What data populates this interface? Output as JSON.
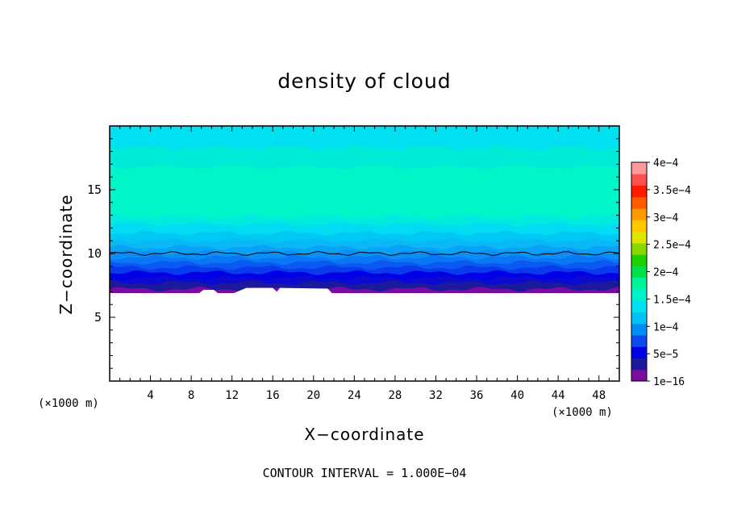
{
  "chart_data": {
    "type": "heatmap",
    "title": "density of cloud",
    "xlabel": "X−coordinate",
    "ylabel": "Z−coordinate",
    "x_unit_label": "(×1000 m)",
    "z_unit_label": "(×1000 m)",
    "xlim": [
      0,
      50
    ],
    "ylim": [
      0,
      20
    ],
    "x_ticks": [
      "4",
      "8",
      "12",
      "16",
      "20",
      "24",
      "28",
      "32",
      "36",
      "40",
      "44",
      "48"
    ],
    "y_ticks": [
      "5",
      "10",
      "15"
    ],
    "colorbar": {
      "labels": [
        "1e−16",
        "5e−5",
        "1e−4",
        "1.5e−4",
        "2e−4",
        "2.5e−4",
        "3e−4",
        "3.5e−4",
        "4e−4"
      ],
      "colors": [
        "#7a0da0",
        "#1c1a9a",
        "#0000e6",
        "#0a4af0",
        "#008cf5",
        "#00c3f5",
        "#00e0f0",
        "#00f2c8",
        "#00f59a",
        "#00e04a",
        "#20d000",
        "#8ad800",
        "#dce600",
        "#ffc800",
        "#ff9a00",
        "#ff5a00",
        "#ff1a00",
        "#ff5050",
        "#ff9a9a"
      ]
    },
    "field_layers": [
      {
        "z_top": 7.2,
        "color": "#7a0da0"
      },
      {
        "z_top": 7.7,
        "color": "#1c1a9a"
      },
      {
        "z_top": 8.1,
        "color": "#0a0ad0"
      },
      {
        "z_top": 8.5,
        "color": "#0000e6"
      },
      {
        "z_top": 8.9,
        "color": "#0a3aee"
      },
      {
        "z_top": 9.3,
        "color": "#0a5af2"
      },
      {
        "z_top": 9.7,
        "color": "#0a78f5"
      },
      {
        "z_top": 10.1,
        "color": "#0a8ff6"
      },
      {
        "z_top": 10.5,
        "color": "#0aa2f6"
      },
      {
        "z_top": 11.0,
        "color": "#0ab8f6"
      },
      {
        "z_top": 11.6,
        "color": "#00c8f5"
      },
      {
        "z_top": 12.3,
        "color": "#00dcf2"
      },
      {
        "z_top": 12.9,
        "color": "#00eae0"
      },
      {
        "z_top": 16.8,
        "color": "#00f5c8"
      },
      {
        "z_top": 18.3,
        "color": "#00ead8"
      },
      {
        "z_top": 20.0,
        "color": "#00e0f0"
      }
    ],
    "contour_line_z": 10.0,
    "terrain_top_z": 6.9,
    "contour_interval_text": "CONTOUR INTERVAL = 1.000E−04"
  }
}
